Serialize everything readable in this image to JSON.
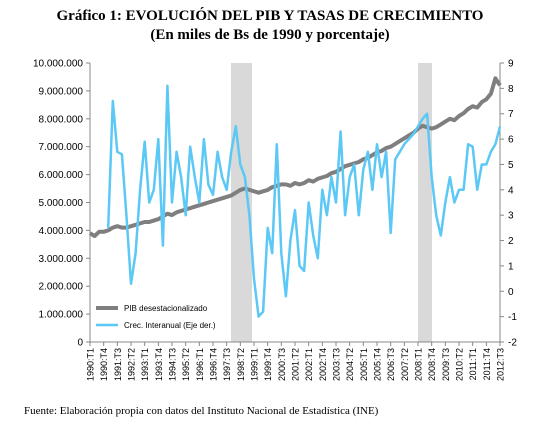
{
  "chart_data": {
    "type": "line",
    "title": "Gráfico 1: EVOLUCIÓN DEL PIB Y TASAS DE CRECIMIENTO",
    "subtitle": "(En miles de Bs de 1990 y porcentaje)",
    "footnote": "Fuente:   Elaboración propia con datos del Instituto Nacional de Estadística (INE)",
    "categories": [
      "1990:T1",
      null,
      null,
      "1990:T4",
      null,
      null,
      "1991:T3",
      null,
      null,
      "1992:T2",
      null,
      null,
      "1993:T1",
      null,
      null,
      "1993:T4",
      null,
      null,
      "1994:T3",
      null,
      null,
      "1995:T2",
      null,
      null,
      "1996:T1",
      null,
      null,
      "1996:T4",
      null,
      null,
      "1997:T3",
      null,
      null,
      "1998:T2",
      null,
      null,
      "1999:T1",
      null,
      null,
      "1999:T4",
      null,
      null,
      "2000:T3",
      null,
      null,
      "2001:T2",
      null,
      null,
      "2002:T1",
      null,
      null,
      "2002:T4",
      null,
      null,
      "2003:T3",
      null,
      null,
      "2004:T2",
      null,
      null,
      "2005:T1",
      null,
      null,
      "2005:T4",
      null,
      null,
      "2006:T3",
      null,
      null,
      "2007:T2",
      null,
      null,
      "2008:T1",
      null,
      null,
      "2008:T4",
      null,
      null,
      "2009:T3",
      null,
      null,
      "2010:T2",
      null,
      null,
      "2011:T1",
      null,
      null,
      "2011:T4",
      null,
      null,
      "2012:T3"
    ],
    "series": [
      {
        "name": "PIB desestacionalizado",
        "color": "#7f7f7f",
        "values": [
          3900000,
          3800000,
          3950000,
          3950000,
          4000000,
          4100000,
          4150000,
          4100000,
          4100000,
          4150000,
          4200000,
          4250000,
          4300000,
          4300000,
          4350000,
          4400000,
          4500000,
          4600000,
          4550000,
          4650000,
          4700000,
          4750000,
          4800000,
          4850000,
          4900000,
          4950000,
          5000000,
          5050000,
          5100000,
          5150000,
          5200000,
          5250000,
          5350000,
          5450000,
          5500000,
          5450000,
          5400000,
          5350000,
          5400000,
          5450000,
          5550000,
          5600000,
          5650000,
          5650000,
          5600000,
          5700000,
          5650000,
          5700000,
          5800000,
          5750000,
          5850000,
          5900000,
          5950000,
          6050000,
          6100000,
          6200000,
          6300000,
          6350000,
          6400000,
          6450000,
          6550000,
          6600000,
          6700000,
          6800000,
          6850000,
          6950000,
          7000000,
          7100000,
          7200000,
          7300000,
          7400000,
          7500000,
          7650000,
          7750000,
          7700000,
          7650000,
          7700000,
          7800000,
          7900000,
          8000000,
          7950000,
          8100000,
          8200000,
          8350000,
          8450000,
          8400000,
          8600000,
          8700000,
          8900000,
          9450000,
          9200000
        ]
      },
      {
        "name": "Crec. Interanual (Eje der.)",
        "color": "#5bc8f5",
        "axis": "y2",
        "values": [
          null,
          null,
          null,
          null,
          2.5,
          7.5,
          5.5,
          5.4,
          3.0,
          0.3,
          1.5,
          4.0,
          5.9,
          3.5,
          4.0,
          6.0,
          1.8,
          8.1,
          3.5,
          5.5,
          4.5,
          3.0,
          5.7,
          4.5,
          3.5,
          6.0,
          4.2,
          3.8,
          5.5,
          4.5,
          4.0,
          5.5,
          6.5,
          5.0,
          4.5,
          3.0,
          0.5,
          -1.0,
          -0.8,
          2.5,
          1.5,
          5.8,
          1.5,
          -0.2,
          2.0,
          3.2,
          1.0,
          0.8,
          3.5,
          2.2,
          1.3,
          4.0,
          3.0,
          4.5,
          3.5,
          6.3,
          3.0,
          4.5,
          5.0,
          3.0,
          4.8,
          5.5,
          4.0,
          5.8,
          4.5,
          5.5,
          2.3,
          5.2,
          5.5,
          5.8,
          6.0,
          6.2,
          6.5,
          6.8,
          7.0,
          4.5,
          3.0,
          2.2,
          3.5,
          4.5,
          3.5,
          4.0,
          4.0,
          5.8,
          5.7,
          4.0,
          5.0,
          5.0,
          5.5,
          5.8,
          6.5
        ]
      }
    ],
    "ylim": [
      0,
      10000000
    ],
    "yticks": [
      0,
      {
        "value": 1000000,
        "label": "1.000.000"
      },
      {
        "value": 2000000,
        "label": "2.000.000"
      },
      {
        "value": 3000000,
        "label": "3.000.000"
      },
      {
        "value": 4000000,
        "label": "4.000.000"
      },
      {
        "value": 5000000,
        "label": "5.000.000"
      },
      {
        "value": 6000000,
        "label": "6.000.000"
      },
      {
        "value": 7000000,
        "label": "7.000.000"
      },
      {
        "value": 8000000,
        "label": "8.000.000"
      },
      {
        "value": 9000000,
        "label": "9.000.000"
      },
      {
        "value": 10000000,
        "label": "10.000.000"
      }
    ],
    "y2lim": [
      -2,
      9
    ],
    "y2ticks": [
      -2,
      -1,
      0,
      1,
      2,
      3,
      4,
      5,
      6,
      7,
      8,
      9
    ],
    "legend": "lower-left"
  }
}
